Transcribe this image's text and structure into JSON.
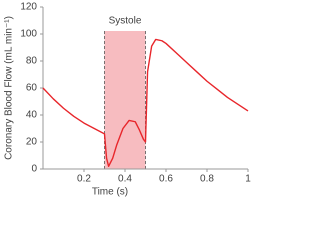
{
  "chart_data": {
    "type": "line",
    "x_label": "Time (s)",
    "y_label": "Coronary Blood Flow (mL min⁻¹)",
    "x": [
      0,
      0.05,
      0.1,
      0.15,
      0.2,
      0.25,
      0.3,
      0.31,
      0.32,
      0.34,
      0.36,
      0.39,
      0.42,
      0.45,
      0.47,
      0.49,
      0.5,
      0.51,
      0.53,
      0.55,
      0.58,
      0.6,
      0.65,
      0.7,
      0.75,
      0.8,
      0.85,
      0.9,
      0.95,
      1
    ],
    "values": [
      60,
      52,
      45,
      39,
      34,
      30,
      26,
      8,
      2,
      8,
      18,
      30,
      36,
      35,
      29,
      22,
      20,
      72,
      91,
      96,
      95,
      93,
      86,
      79,
      72,
      65,
      59,
      53,
      48,
      43
    ],
    "color": "#e8262b",
    "shade": {
      "label": "Systole",
      "x": [
        0.3,
        0.5
      ],
      "color": "#f7bcc0"
    },
    "xlim": [
      0,
      1
    ],
    "xticks": [
      0.2,
      0.4,
      0.6,
      0.8,
      1
    ],
    "ylim": [
      0,
      120
    ],
    "yticks": [
      0,
      20,
      40,
      60,
      80,
      100,
      120
    ]
  }
}
